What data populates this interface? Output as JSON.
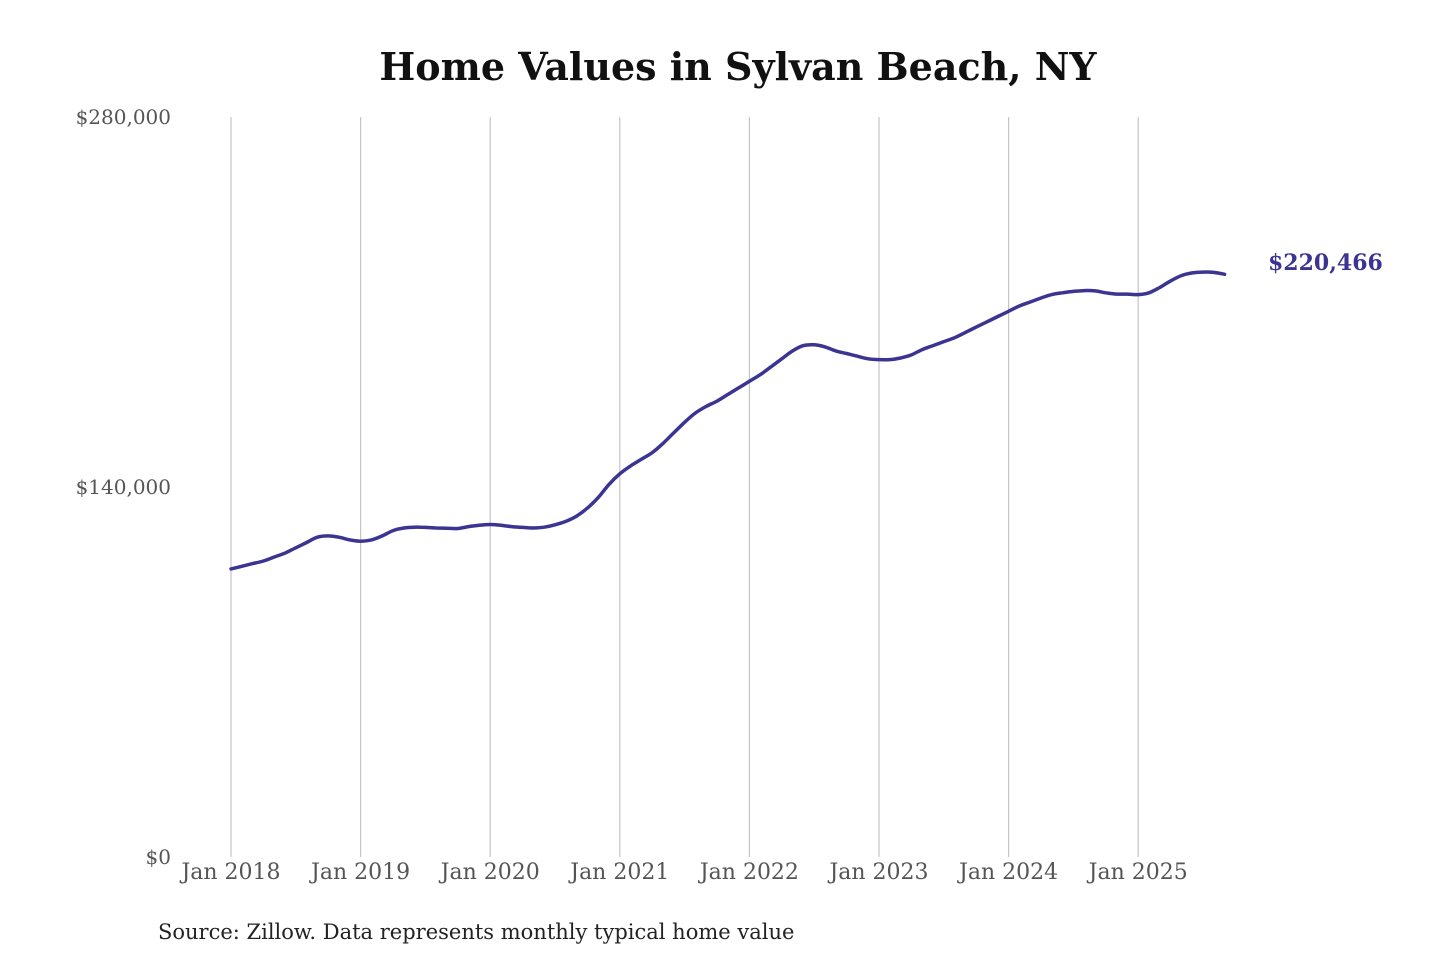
{
  "chart_data": {
    "type": "line",
    "title": "Home Values in Sylvan Beach, NY",
    "xlabel": "",
    "ylabel": "",
    "ylim": [
      0,
      280000
    ],
    "y_ticks": [
      "$280,000",
      "$140,000",
      "$0"
    ],
    "x_ticks": [
      "Jan 2018",
      "Jan 2019",
      "Jan 2020",
      "Jan 2021",
      "Jan 2022",
      "Jan 2023",
      "Jan 2024",
      "Jan 2025"
    ],
    "grid": "vertical lines at each January",
    "series": [
      {
        "color": "#3b3493",
        "end_label": "$220,466",
        "points": [
          [
            "2018-01",
            109000
          ],
          [
            "2018-02",
            110000
          ],
          [
            "2018-03",
            111000
          ],
          [
            "2018-04",
            112000
          ],
          [
            "2018-05",
            113500
          ],
          [
            "2018-06",
            115000
          ],
          [
            "2018-07",
            117000
          ],
          [
            "2018-08",
            119000
          ],
          [
            "2018-09",
            121000
          ],
          [
            "2018-10",
            121500
          ],
          [
            "2018-11",
            121000
          ],
          [
            "2018-12",
            120000
          ],
          [
            "2019-01",
            119500
          ],
          [
            "2019-02",
            120000
          ],
          [
            "2019-03",
            121500
          ],
          [
            "2019-04",
            123500
          ],
          [
            "2019-05",
            124500
          ],
          [
            "2019-06",
            124800
          ],
          [
            "2019-07",
            124700
          ],
          [
            "2019-08",
            124500
          ],
          [
            "2019-09",
            124400
          ],
          [
            "2019-10",
            124300
          ],
          [
            "2019-11",
            125000
          ],
          [
            "2019-12",
            125500
          ],
          [
            "2020-01",
            125800
          ],
          [
            "2020-02",
            125500
          ],
          [
            "2020-03",
            125000
          ],
          [
            "2020-04",
            124700
          ],
          [
            "2020-05",
            124500
          ],
          [
            "2020-06",
            124800
          ],
          [
            "2020-07",
            125700
          ],
          [
            "2020-08",
            127000
          ],
          [
            "2020-09",
            129000
          ],
          [
            "2020-10",
            132000
          ],
          [
            "2020-11",
            136000
          ],
          [
            "2020-12",
            141000
          ],
          [
            "2021-01",
            145000
          ],
          [
            "2021-02",
            148000
          ],
          [
            "2021-03",
            150500
          ],
          [
            "2021-04",
            153000
          ],
          [
            "2021-05",
            156500
          ],
          [
            "2021-06",
            160500
          ],
          [
            "2021-07",
            164500
          ],
          [
            "2021-08",
            168000
          ],
          [
            "2021-09",
            170500
          ],
          [
            "2021-10",
            172500
          ],
          [
            "2021-11",
            175000
          ],
          [
            "2021-12",
            177500
          ],
          [
            "2022-01",
            180000
          ],
          [
            "2022-02",
            182500
          ],
          [
            "2022-03",
            185500
          ],
          [
            "2022-04",
            188500
          ],
          [
            "2022-05",
            191500
          ],
          [
            "2022-06",
            193500
          ],
          [
            "2022-07",
            193800
          ],
          [
            "2022-08",
            193000
          ],
          [
            "2022-09",
            191500
          ],
          [
            "2022-10",
            190500
          ],
          [
            "2022-11",
            189500
          ],
          [
            "2022-12",
            188500
          ],
          [
            "2023-01",
            188200
          ],
          [
            "2023-02",
            188200
          ],
          [
            "2023-03",
            188800
          ],
          [
            "2023-04",
            190000
          ],
          [
            "2023-05",
            192000
          ],
          [
            "2023-06",
            193500
          ],
          [
            "2023-07",
            195000
          ],
          [
            "2023-08",
            196500
          ],
          [
            "2023-09",
            198500
          ],
          [
            "2023-10",
            200500
          ],
          [
            "2023-11",
            202500
          ],
          [
            "2023-12",
            204500
          ],
          [
            "2024-01",
            206500
          ],
          [
            "2024-02",
            208500
          ],
          [
            "2024-03",
            210000
          ],
          [
            "2024-04",
            211500
          ],
          [
            "2024-05",
            212800
          ],
          [
            "2024-06",
            213500
          ],
          [
            "2024-07",
            214000
          ],
          [
            "2024-08",
            214300
          ],
          [
            "2024-09",
            214200
          ],
          [
            "2024-10",
            213500
          ],
          [
            "2024-11",
            213000
          ],
          [
            "2024-12",
            213000
          ],
          [
            "2025-01",
            212800
          ],
          [
            "2025-02",
            213500
          ],
          [
            "2025-03",
            215500
          ],
          [
            "2025-04",
            218000
          ],
          [
            "2025-05",
            220000
          ],
          [
            "2025-06",
            221000
          ],
          [
            "2025-07",
            221300
          ],
          [
            "2025-08",
            221200
          ],
          [
            "2025-09",
            220466
          ]
        ]
      }
    ],
    "source": "Source: Zillow. Data represents monthly typical home value"
  }
}
